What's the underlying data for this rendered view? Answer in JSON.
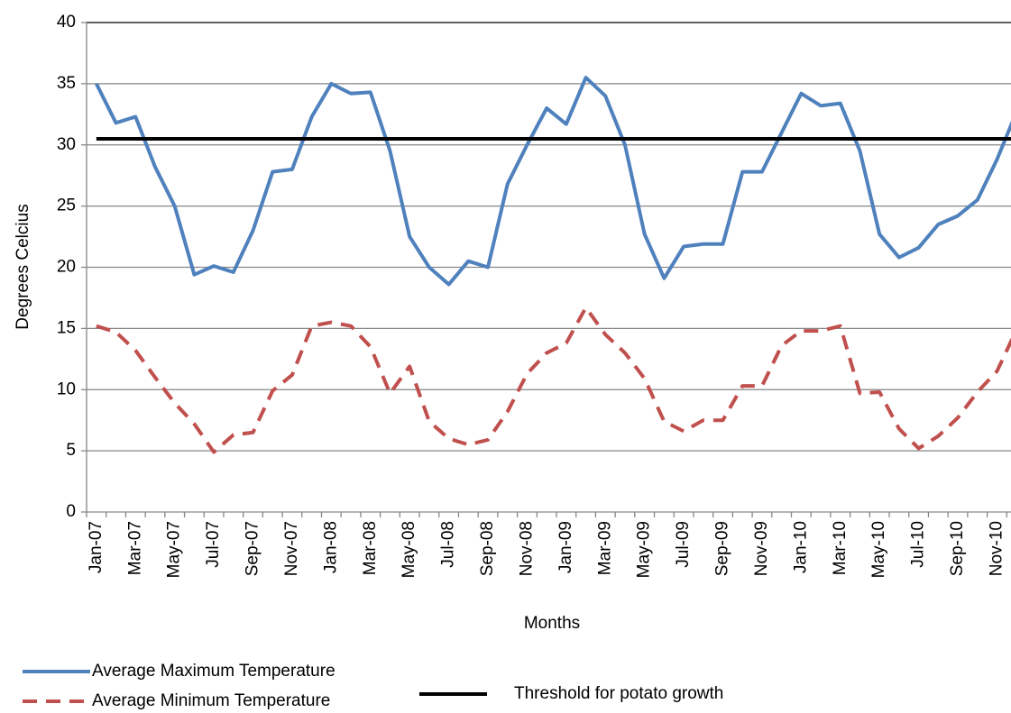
{
  "chart_data": {
    "type": "line",
    "y_label": "Degrees Celcius",
    "x_label": "Months",
    "categories": [
      "Jan-07",
      null,
      "Mar-07",
      null,
      "May-07",
      null,
      "Jul-07",
      null,
      "Sep-07",
      null,
      "Nov-07",
      null,
      "Jan-08",
      null,
      "Mar-08",
      null,
      "May-08",
      null,
      "Jul-08",
      null,
      "Sep-08",
      null,
      "Nov-08",
      null,
      "Jan-09",
      null,
      "Mar-09",
      null,
      "May-09",
      null,
      "Jul-09",
      null,
      "Sep-09",
      null,
      "Nov-09",
      null,
      "Jan-10",
      null,
      "Mar-10",
      null,
      "May-10",
      null,
      "Jul-10",
      null,
      "Sep-10",
      null,
      "Nov-10",
      null
    ],
    "series": [
      {
        "name": "Average Maximum Temperature",
        "color": "#4f81bd",
        "dash": false,
        "values": [
          35,
          31.8,
          32.3,
          28.2,
          25,
          19.4,
          20.1,
          19.6,
          23,
          27.8,
          28,
          32.3,
          35,
          34.2,
          34.3,
          29.5,
          22.5,
          20,
          18.6,
          20.5,
          20,
          26.8,
          30,
          33,
          31.7,
          35.5,
          34,
          30,
          22.7,
          19.1,
          21.7,
          21.9,
          21.9,
          27.8,
          27.8,
          31,
          34.2,
          33.2,
          33.4,
          29.5,
          22.7,
          20.8,
          21.6,
          23.5,
          24.2,
          25.5,
          28.8,
          32.7
        ]
      },
      {
        "name": "Average Minimum Temperature",
        "color": "#c0504d",
        "dash": true,
        "values": [
          15.2,
          14.7,
          13.2,
          11,
          8.9,
          7.2,
          4.9,
          6.3,
          6.5,
          9.9,
          11.2,
          15.2,
          15.5,
          15.2,
          13.5,
          9.7,
          11.9,
          7.4,
          6,
          5.5,
          5.9,
          8.2,
          11.3,
          13,
          13.8,
          16.7,
          14.5,
          13,
          10.9,
          7.4,
          6.6,
          7.5,
          7.5,
          10.3,
          10.3,
          13.6,
          14.8,
          14.8,
          15.2,
          9.7,
          9.8,
          6.8,
          5.2,
          6.2,
          7.7,
          9.8,
          11.5,
          14.9
        ]
      },
      {
        "name": "Threshold for potato growth",
        "color": "#000000",
        "dash": false,
        "values": [
          30.5,
          30.5,
          30.5,
          30.5,
          30.5,
          30.5,
          30.5,
          30.5,
          30.5,
          30.5,
          30.5,
          30.5,
          30.5,
          30.5,
          30.5,
          30.5,
          30.5,
          30.5,
          30.5,
          30.5,
          30.5,
          30.5,
          30.5,
          30.5,
          30.5,
          30.5,
          30.5,
          30.5,
          30.5,
          30.5,
          30.5,
          30.5,
          30.5,
          30.5,
          30.5,
          30.5,
          30.5,
          30.5,
          30.5,
          30.5,
          30.5,
          30.5,
          30.5,
          30.5,
          30.5,
          30.5,
          30.5,
          30.5
        ]
      }
    ],
    "ylim": [
      0,
      40
    ],
    "yticks": [
      0,
      5,
      10,
      15,
      20,
      25,
      30,
      35,
      40
    ],
    "grid": true
  }
}
